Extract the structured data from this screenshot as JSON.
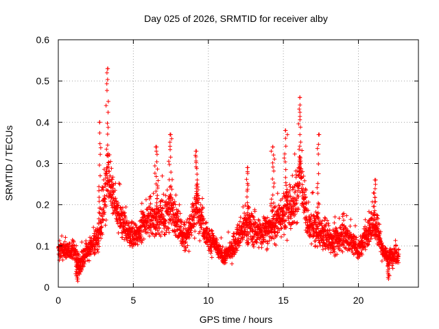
{
  "chart_data": {
    "type": "scatter",
    "title": "Day 025 of 2026, SRMTID for receiver alby",
    "xlabel": "GPS time / hours",
    "ylabel": "SRMTID / TECUs",
    "xlim": [
      0,
      24
    ],
    "ylim": [
      0,
      0.6
    ],
    "x_ticks": [
      0,
      5,
      10,
      15,
      20
    ],
    "x_tick_labels": [
      "0",
      "5",
      "10",
      "15",
      "20"
    ],
    "y_ticks": [
      0,
      0.1,
      0.2,
      0.3,
      0.4,
      0.5,
      0.6
    ],
    "y_tick_labels": [
      "0",
      "0.1",
      "0.2",
      "0.3",
      "0.4",
      "0.5",
      "0.6"
    ],
    "grid": true,
    "marker": "+",
    "color": "#ff0000",
    "point_density_per_hour": 130,
    "series": [
      {
        "name": "SRMTID",
        "envelope": {
          "x": [
            0.0,
            0.5,
            1.0,
            1.4,
            1.8,
            2.2,
            2.6,
            2.9,
            3.2,
            3.4,
            3.6,
            4.0,
            4.5,
            5.0,
            5.5,
            6.0,
            6.5,
            7.0,
            7.5,
            8.0,
            8.5,
            9.0,
            9.3,
            9.6,
            10.0,
            10.5,
            11.0,
            11.5,
            12.0,
            12.5,
            13.0,
            13.5,
            14.0,
            14.5,
            15.0,
            15.3,
            15.6,
            15.9,
            16.1,
            16.3,
            16.6,
            17.0,
            17.5,
            18.0,
            18.5,
            19.0,
            19.5,
            20.0,
            20.5,
            21.0,
            21.3,
            21.6,
            22.0,
            22.3,
            22.7
          ],
          "center": [
            0.09,
            0.09,
            0.09,
            0.05,
            0.08,
            0.1,
            0.12,
            0.16,
            0.25,
            0.28,
            0.22,
            0.17,
            0.14,
            0.12,
            0.14,
            0.17,
            0.16,
            0.17,
            0.19,
            0.15,
            0.12,
            0.17,
            0.2,
            0.16,
            0.12,
            0.1,
            0.07,
            0.09,
            0.12,
            0.15,
            0.14,
            0.13,
            0.14,
            0.15,
            0.18,
            0.2,
            0.19,
            0.22,
            0.28,
            0.24,
            0.15,
            0.14,
            0.13,
            0.12,
            0.11,
            0.13,
            0.11,
            0.09,
            0.12,
            0.16,
            0.14,
            0.09,
            0.07,
            0.08,
            0.08
          ],
          "spread": [
            0.03,
            0.03,
            0.03,
            0.03,
            0.03,
            0.03,
            0.04,
            0.07,
            0.12,
            0.09,
            0.05,
            0.05,
            0.04,
            0.04,
            0.04,
            0.05,
            0.06,
            0.07,
            0.07,
            0.05,
            0.05,
            0.06,
            0.07,
            0.05,
            0.04,
            0.03,
            0.02,
            0.03,
            0.04,
            0.06,
            0.05,
            0.04,
            0.05,
            0.06,
            0.07,
            0.08,
            0.07,
            0.08,
            0.09,
            0.07,
            0.05,
            0.05,
            0.05,
            0.05,
            0.04,
            0.05,
            0.04,
            0.03,
            0.04,
            0.05,
            0.05,
            0.03,
            0.02,
            0.03,
            0.03
          ]
        },
        "peaks": [
          {
            "x": 3.3,
            "y": 0.53
          },
          {
            "x": 2.75,
            "y": 0.4
          },
          {
            "x": 7.45,
            "y": 0.37
          },
          {
            "x": 9.2,
            "y": 0.33
          },
          {
            "x": 6.55,
            "y": 0.34
          },
          {
            "x": 12.6,
            "y": 0.29
          },
          {
            "x": 14.3,
            "y": 0.34
          },
          {
            "x": 15.15,
            "y": 0.38
          },
          {
            "x": 16.1,
            "y": 0.46
          },
          {
            "x": 17.35,
            "y": 0.37
          },
          {
            "x": 21.1,
            "y": 0.26
          },
          {
            "x": 1.25,
            "y": 0.02
          },
          {
            "x": 22.0,
            "y": 0.03
          }
        ]
      }
    ]
  }
}
